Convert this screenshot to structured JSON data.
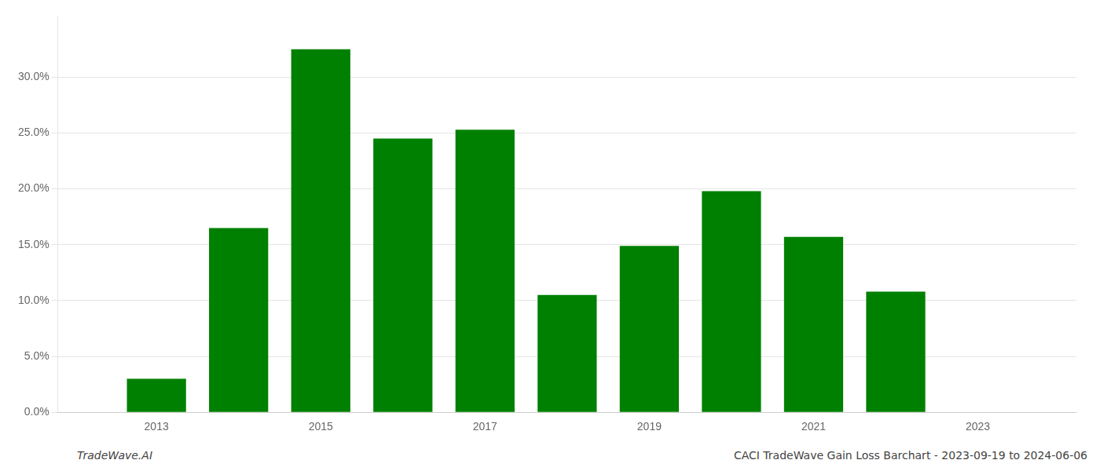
{
  "chart_data": {
    "type": "bar",
    "x": [
      2013,
      2014,
      2015,
      2016,
      2017,
      2018,
      2019,
      2020,
      2021,
      2022
    ],
    "values": [
      0.03,
      0.165,
      0.325,
      0.245,
      0.253,
      0.105,
      0.149,
      0.198,
      0.157,
      0.108
    ],
    "color": "#008000",
    "xlim": [
      2011.8,
      2024.2
    ],
    "xticks": [
      2013,
      2015,
      2017,
      2019,
      2021,
      2023
    ],
    "ylim": [
      0,
      0.355
    ],
    "yticks": [
      {
        "value": 0.0,
        "label": "0.0%"
      },
      {
        "value": 0.05,
        "label": "5.0%"
      },
      {
        "value": 0.1,
        "label": "10.0%"
      },
      {
        "value": 0.15,
        "label": "15.0%"
      },
      {
        "value": 0.2,
        "label": "20.0%"
      },
      {
        "value": 0.25,
        "label": "25.0%"
      },
      {
        "value": 0.3,
        "label": "30.0%"
      }
    ],
    "grid": true,
    "annotations": [
      "TradeWave.AI",
      "CACI TradeWave Gain Loss Barchart - 2023-09-19 to 2024-06-06"
    ]
  }
}
